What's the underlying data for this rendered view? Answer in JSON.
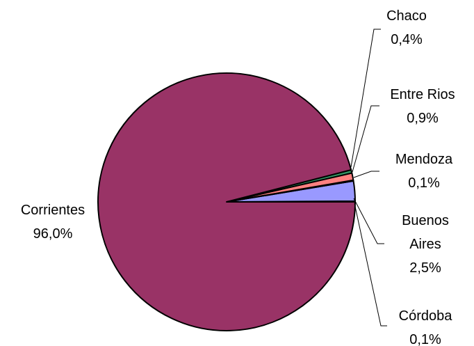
{
  "chart_data": {
    "type": "pie",
    "slices": [
      {
        "name": "Corrientes",
        "value": 96.0,
        "label_lines": [
          "Corrientes",
          "96,0%"
        ],
        "color": "#993366"
      },
      {
        "name": "Chaco",
        "value": 0.4,
        "label_lines": [
          "Chaco",
          "0,4%"
        ],
        "color": "#339966"
      },
      {
        "name": "Entre Rios",
        "value": 0.9,
        "label_lines": [
          "Entre Rios",
          "0,9%"
        ],
        "color": "#FF8080"
      },
      {
        "name": "Mendoza",
        "value": 0.1,
        "label_lines": [
          "Mendoza",
          "0,1%"
        ],
        "color": "#FFFF99"
      },
      {
        "name": "Buenos Aires",
        "value": 2.5,
        "label_lines": [
          "Buenos",
          "Aires",
          "2,5%"
        ],
        "color": "#9999FF"
      },
      {
        "name": "Córdoba",
        "value": 0.1,
        "label_lines": [
          "Córdoba",
          "0,1%"
        ],
        "color": "#CCFFCC"
      }
    ],
    "legend": "none",
    "title": ""
  }
}
